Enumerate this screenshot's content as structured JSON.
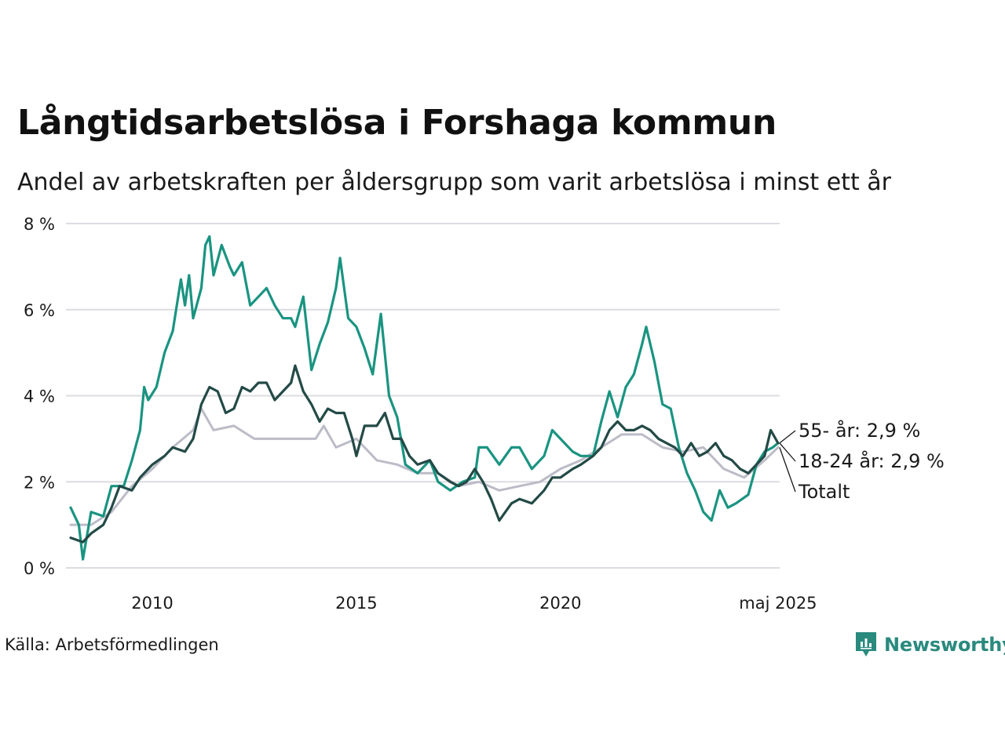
{
  "title": "Långtidsarbetslösa i Forshaga kommun",
  "subtitle": "Andel av arbetskraften per åldersgrupp som varit arbetslösa i minst ett år",
  "source": "Källa: Arbetsförmedlingen",
  "brand": {
    "name": "Newsworthy",
    "icon": "newsworthy-logo-icon",
    "color": "#2a8a7e"
  },
  "chart_data": {
    "type": "line",
    "title": "Långtidsarbetslösa i Forshaga kommun",
    "subtitle": "Andel av arbetskraften per åldersgrupp som varit arbetslösa i minst ett år",
    "xlabel": "",
    "ylabel": "",
    "ylim": [
      0,
      8
    ],
    "xlim": [
      2008.0,
      2025.37
    ],
    "y_ticks": [
      {
        "value": 0,
        "label": "0 %"
      },
      {
        "value": 2,
        "label": "2 %"
      },
      {
        "value": 4,
        "label": "4 %"
      },
      {
        "value": 6,
        "label": "6 %"
      },
      {
        "value": 8,
        "label": "8 %"
      }
    ],
    "x_ticks": [
      {
        "value": 2010,
        "label": "2010"
      },
      {
        "value": 2015,
        "label": "2015"
      },
      {
        "value": 2020,
        "label": "2020"
      },
      {
        "value": 2025.33,
        "label": "maj 2025"
      }
    ],
    "grid": "horizontal",
    "legend": "none",
    "series": [
      {
        "name": "Totalt",
        "color": "#bcbcc8",
        "end_label": "Totalt",
        "points": [
          [
            2008.0,
            1.0
          ],
          [
            2008.5,
            1.0
          ],
          [
            2009.0,
            1.3
          ],
          [
            2009.5,
            1.9
          ],
          [
            2010.0,
            2.3
          ],
          [
            2010.5,
            2.8
          ],
          [
            2011.0,
            3.2
          ],
          [
            2011.2,
            3.7
          ],
          [
            2011.5,
            3.2
          ],
          [
            2012.0,
            3.3
          ],
          [
            2012.5,
            3.0
          ],
          [
            2013.0,
            3.0
          ],
          [
            2013.5,
            3.0
          ],
          [
            2014.0,
            3.0
          ],
          [
            2014.2,
            3.3
          ],
          [
            2014.5,
            2.8
          ],
          [
            2015.0,
            3.0
          ],
          [
            2015.5,
            2.5
          ],
          [
            2016.0,
            2.4
          ],
          [
            2016.5,
            2.2
          ],
          [
            2017.0,
            2.2
          ],
          [
            2017.5,
            1.9
          ],
          [
            2018.0,
            2.0
          ],
          [
            2018.5,
            1.8
          ],
          [
            2019.0,
            1.9
          ],
          [
            2019.5,
            2.0
          ],
          [
            2020.0,
            2.3
          ],
          [
            2020.5,
            2.5
          ],
          [
            2021.0,
            2.8
          ],
          [
            2021.5,
            3.1
          ],
          [
            2022.0,
            3.1
          ],
          [
            2022.5,
            2.8
          ],
          [
            2023.0,
            2.7
          ],
          [
            2023.5,
            2.8
          ],
          [
            2024.0,
            2.3
          ],
          [
            2024.5,
            2.1
          ],
          [
            2025.0,
            2.5
          ],
          [
            2025.33,
            2.8
          ]
        ]
      },
      {
        "name": "18-24 år",
        "color": "#1a9481",
        "end_label": "18-24 år: 2,9 %",
        "points": [
          [
            2008.0,
            1.4
          ],
          [
            2008.2,
            1.0
          ],
          [
            2008.3,
            0.2
          ],
          [
            2008.5,
            1.3
          ],
          [
            2008.8,
            1.2
          ],
          [
            2009.0,
            1.9
          ],
          [
            2009.3,
            1.9
          ],
          [
            2009.5,
            2.5
          ],
          [
            2009.7,
            3.2
          ],
          [
            2009.8,
            4.2
          ],
          [
            2009.9,
            3.9
          ],
          [
            2010.1,
            4.2
          ],
          [
            2010.3,
            5.0
          ],
          [
            2010.5,
            5.5
          ],
          [
            2010.7,
            6.7
          ],
          [
            2010.8,
            6.1
          ],
          [
            2010.9,
            6.8
          ],
          [
            2011.0,
            5.8
          ],
          [
            2011.2,
            6.5
          ],
          [
            2011.3,
            7.5
          ],
          [
            2011.4,
            7.7
          ],
          [
            2011.5,
            6.8
          ],
          [
            2011.7,
            7.5
          ],
          [
            2011.9,
            7.0
          ],
          [
            2012.0,
            6.8
          ],
          [
            2012.2,
            7.1
          ],
          [
            2012.4,
            6.1
          ],
          [
            2012.6,
            6.3
          ],
          [
            2012.8,
            6.5
          ],
          [
            2013.0,
            6.1
          ],
          [
            2013.2,
            5.8
          ],
          [
            2013.4,
            5.8
          ],
          [
            2013.5,
            5.6
          ],
          [
            2013.7,
            6.3
          ],
          [
            2013.9,
            4.6
          ],
          [
            2014.1,
            5.2
          ],
          [
            2014.3,
            5.7
          ],
          [
            2014.5,
            6.5
          ],
          [
            2014.6,
            7.2
          ],
          [
            2014.8,
            5.8
          ],
          [
            2015.0,
            5.6
          ],
          [
            2015.2,
            5.1
          ],
          [
            2015.4,
            4.5
          ],
          [
            2015.6,
            5.9
          ],
          [
            2015.8,
            4.0
          ],
          [
            2016.0,
            3.5
          ],
          [
            2016.2,
            2.4
          ],
          [
            2016.5,
            2.2
          ],
          [
            2016.8,
            2.5
          ],
          [
            2017.0,
            2.0
          ],
          [
            2017.3,
            1.8
          ],
          [
            2017.6,
            2.0
          ],
          [
            2017.9,
            2.1
          ],
          [
            2018.0,
            2.8
          ],
          [
            2018.2,
            2.8
          ],
          [
            2018.5,
            2.4
          ],
          [
            2018.8,
            2.8
          ],
          [
            2019.0,
            2.8
          ],
          [
            2019.3,
            2.3
          ],
          [
            2019.6,
            2.6
          ],
          [
            2019.8,
            3.2
          ],
          [
            2020.0,
            3.0
          ],
          [
            2020.3,
            2.7
          ],
          [
            2020.5,
            2.6
          ],
          [
            2020.8,
            2.6
          ],
          [
            2021.0,
            3.4
          ],
          [
            2021.2,
            4.1
          ],
          [
            2021.4,
            3.5
          ],
          [
            2021.6,
            4.2
          ],
          [
            2021.8,
            4.5
          ],
          [
            2022.0,
            5.2
          ],
          [
            2022.1,
            5.6
          ],
          [
            2022.3,
            4.8
          ],
          [
            2022.5,
            3.8
          ],
          [
            2022.7,
            3.7
          ],
          [
            2022.9,
            2.8
          ],
          [
            2023.1,
            2.2
          ],
          [
            2023.3,
            1.8
          ],
          [
            2023.5,
            1.3
          ],
          [
            2023.7,
            1.1
          ],
          [
            2023.9,
            1.8
          ],
          [
            2024.1,
            1.4
          ],
          [
            2024.3,
            1.5
          ],
          [
            2024.6,
            1.7
          ],
          [
            2024.8,
            2.4
          ],
          [
            2025.0,
            2.7
          ],
          [
            2025.2,
            2.8
          ],
          [
            2025.33,
            2.9
          ]
        ]
      },
      {
        "name": "55- år",
        "color": "#234a46",
        "end_label": "55- år: 2,9 %",
        "points": [
          [
            2008.0,
            0.7
          ],
          [
            2008.3,
            0.6
          ],
          [
            2008.5,
            0.8
          ],
          [
            2008.8,
            1.0
          ],
          [
            2009.0,
            1.4
          ],
          [
            2009.2,
            1.9
          ],
          [
            2009.5,
            1.8
          ],
          [
            2009.7,
            2.1
          ],
          [
            2010.0,
            2.4
          ],
          [
            2010.3,
            2.6
          ],
          [
            2010.5,
            2.8
          ],
          [
            2010.8,
            2.7
          ],
          [
            2011.0,
            3.0
          ],
          [
            2011.2,
            3.8
          ],
          [
            2011.4,
            4.2
          ],
          [
            2011.6,
            4.1
          ],
          [
            2011.8,
            3.6
          ],
          [
            2012.0,
            3.7
          ],
          [
            2012.2,
            4.2
          ],
          [
            2012.4,
            4.1
          ],
          [
            2012.6,
            4.3
          ],
          [
            2012.8,
            4.3
          ],
          [
            2013.0,
            3.9
          ],
          [
            2013.2,
            4.1
          ],
          [
            2013.4,
            4.3
          ],
          [
            2013.5,
            4.7
          ],
          [
            2013.7,
            4.1
          ],
          [
            2013.9,
            3.8
          ],
          [
            2014.1,
            3.4
          ],
          [
            2014.3,
            3.7
          ],
          [
            2014.5,
            3.6
          ],
          [
            2014.7,
            3.6
          ],
          [
            2014.9,
            3.0
          ],
          [
            2015.0,
            2.6
          ],
          [
            2015.2,
            3.3
          ],
          [
            2015.5,
            3.3
          ],
          [
            2015.7,
            3.6
          ],
          [
            2015.9,
            3.0
          ],
          [
            2016.1,
            3.0
          ],
          [
            2016.3,
            2.6
          ],
          [
            2016.5,
            2.4
          ],
          [
            2016.8,
            2.5
          ],
          [
            2017.0,
            2.2
          ],
          [
            2017.3,
            2.0
          ],
          [
            2017.5,
            1.9
          ],
          [
            2017.7,
            2.0
          ],
          [
            2017.9,
            2.3
          ],
          [
            2018.1,
            2.0
          ],
          [
            2018.3,
            1.6
          ],
          [
            2018.5,
            1.1
          ],
          [
            2018.8,
            1.5
          ],
          [
            2019.0,
            1.6
          ],
          [
            2019.3,
            1.5
          ],
          [
            2019.6,
            1.8
          ],
          [
            2019.8,
            2.1
          ],
          [
            2020.0,
            2.1
          ],
          [
            2020.3,
            2.3
          ],
          [
            2020.5,
            2.4
          ],
          [
            2020.8,
            2.6
          ],
          [
            2021.0,
            2.8
          ],
          [
            2021.2,
            3.2
          ],
          [
            2021.4,
            3.4
          ],
          [
            2021.6,
            3.2
          ],
          [
            2021.8,
            3.2
          ],
          [
            2022.0,
            3.3
          ],
          [
            2022.2,
            3.2
          ],
          [
            2022.4,
            3.0
          ],
          [
            2022.6,
            2.9
          ],
          [
            2022.8,
            2.8
          ],
          [
            2023.0,
            2.6
          ],
          [
            2023.2,
            2.9
          ],
          [
            2023.4,
            2.6
          ],
          [
            2023.6,
            2.7
          ],
          [
            2023.8,
            2.9
          ],
          [
            2024.0,
            2.6
          ],
          [
            2024.2,
            2.5
          ],
          [
            2024.4,
            2.3
          ],
          [
            2024.6,
            2.2
          ],
          [
            2024.8,
            2.4
          ],
          [
            2025.0,
            2.6
          ],
          [
            2025.15,
            3.2
          ],
          [
            2025.33,
            2.9
          ]
        ]
      }
    ]
  }
}
